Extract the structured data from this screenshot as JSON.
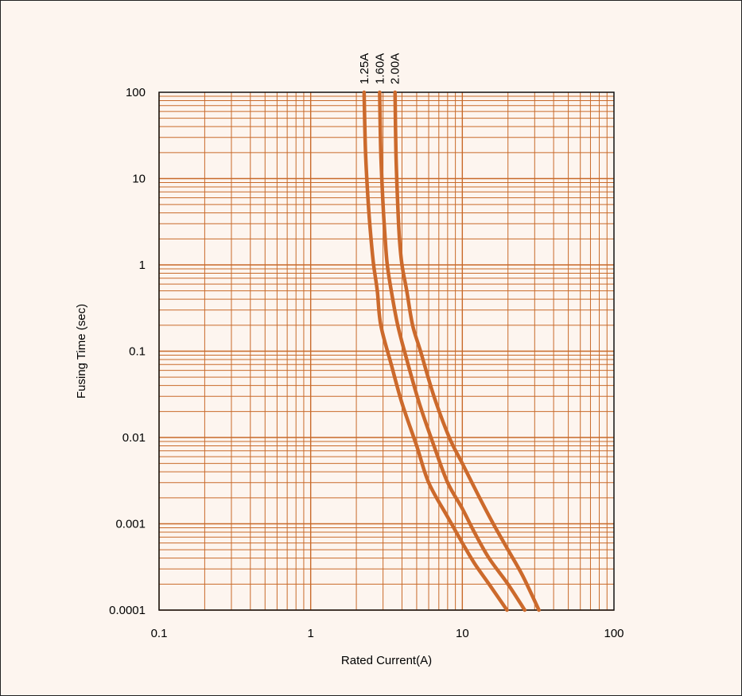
{
  "chart_data": {
    "type": "line",
    "title": "",
    "xlabel": "Rated Current(A)",
    "ylabel": "Fusing Time (sec)",
    "x_scale": "log",
    "y_scale": "log",
    "xlim": [
      0.1,
      100
    ],
    "ylim": [
      0.0001,
      100
    ],
    "grid": true,
    "x_ticks": [
      "0.1",
      "1",
      "10",
      "100"
    ],
    "y_ticks": [
      "0.0001",
      "0.001",
      "0.01",
      "0.1",
      "1",
      "10",
      "100"
    ],
    "colors": {
      "curve": "#cc6a2c",
      "grid": "#c86a2a",
      "plot_bg": "#fdf5ef"
    },
    "series": [
      {
        "name": "1.25A",
        "points": [
          [
            2.25,
            100
          ],
          [
            2.3,
            20
          ],
          [
            2.4,
            5
          ],
          [
            2.5,
            2
          ],
          [
            2.6,
            1
          ],
          [
            2.75,
            0.5
          ],
          [
            2.9,
            0.2
          ],
          [
            3.4,
            0.07
          ],
          [
            4.0,
            0.025
          ],
          [
            5.0,
            0.008
          ],
          [
            6.0,
            0.003
          ],
          [
            8.0,
            0.0012
          ],
          [
            10.0,
            0.0006
          ],
          [
            12.0,
            0.00035
          ],
          [
            15.0,
            0.0002
          ],
          [
            19.7,
            0.0001
          ]
        ]
      },
      {
        "name": "1.60A",
        "points": [
          [
            2.85,
            100
          ],
          [
            2.9,
            20
          ],
          [
            3.0,
            5
          ],
          [
            3.1,
            2
          ],
          [
            3.2,
            1
          ],
          [
            3.4,
            0.5
          ],
          [
            3.75,
            0.2
          ],
          [
            4.3,
            0.08
          ],
          [
            5.2,
            0.025
          ],
          [
            6.5,
            0.008
          ],
          [
            8.0,
            0.003
          ],
          [
            10.0,
            0.0015
          ],
          [
            12.0,
            0.0008
          ],
          [
            15.0,
            0.0004
          ],
          [
            20.0,
            0.0002
          ],
          [
            25.8,
            0.0001
          ]
        ]
      },
      {
        "name": "2.00A",
        "points": [
          [
            3.6,
            100
          ],
          [
            3.65,
            20
          ],
          [
            3.75,
            5
          ],
          [
            3.85,
            2
          ],
          [
            4.0,
            1
          ],
          [
            4.3,
            0.5
          ],
          [
            4.7,
            0.2
          ],
          [
            5.3,
            0.1
          ],
          [
            6.5,
            0.03
          ],
          [
            8.2,
            0.01
          ],
          [
            10.0,
            0.005
          ],
          [
            13.0,
            0.002
          ],
          [
            16.0,
            0.001
          ],
          [
            20.0,
            0.0005
          ],
          [
            25.0,
            0.00025
          ],
          [
            32.0,
            0.0001
          ]
        ]
      }
    ]
  }
}
